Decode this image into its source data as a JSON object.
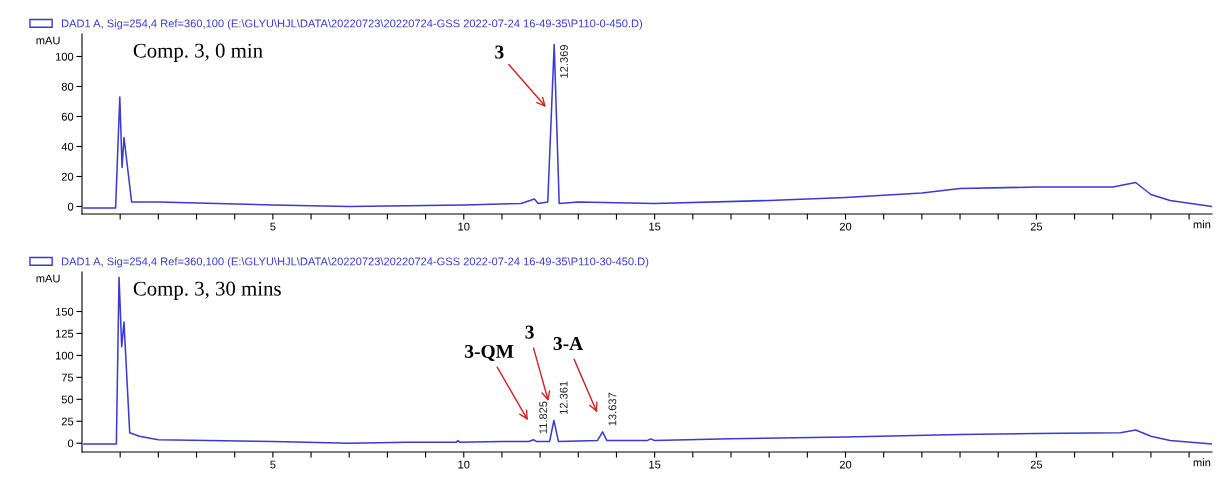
{
  "chart_data": [
    {
      "type": "line",
      "xlabel": "min",
      "ylabel": "mAU",
      "xlim": [
        0,
        29.6
      ],
      "ylim": [
        -5,
        115
      ],
      "xticks": [
        {
          "value": 1,
          "label": null
        },
        {
          "value": 2,
          "label": null
        },
        {
          "value": 3,
          "label": null
        },
        {
          "value": 4,
          "label": null
        },
        5,
        {
          "value": 6,
          "label": null
        },
        {
          "value": 7,
          "label": null
        },
        {
          "value": 8,
          "label": null
        },
        {
          "value": 9,
          "label": null
        },
        10,
        {
          "value": 11,
          "label": null
        },
        {
          "value": 12,
          "label": null
        },
        {
          "value": 13,
          "label": null
        },
        {
          "value": 14,
          "label": null
        },
        15,
        {
          "value": 16,
          "label": null
        },
        {
          "value": 17,
          "label": null
        },
        {
          "value": 18,
          "label": null
        },
        {
          "value": 19,
          "label": null
        },
        20,
        {
          "value": 21,
          "label": null
        },
        {
          "value": 22,
          "label": null
        },
        {
          "value": 23,
          "label": null
        },
        {
          "value": 24,
          "label": null
        },
        25,
        {
          "value": 26,
          "label": null
        },
        {
          "value": 27,
          "label": null
        },
        {
          "value": 28,
          "label": null
        },
        {
          "value": 29,
          "label": null
        }
      ],
      "yticks": [
        0,
        20,
        40,
        60,
        80,
        100
      ],
      "grid": false,
      "legend": "top",
      "series": [
        {
          "name": "DAD1 A, Sig=254,4 Ref=360,100 (E:\\GLYU\\HJL\\DATA\\20220723\\20220724-GSS 2022-07-24 16-49-35\\P110-0-450.D)",
          "color": "#3a3ad0",
          "x": [
            0.05,
            0.88,
            0.99,
            1.05,
            1.1,
            1.3,
            2,
            5,
            7,
            10,
            11.5,
            11.85,
            11.95,
            12.2,
            12.369,
            12.5,
            13,
            15,
            18,
            20,
            22,
            23,
            25,
            27,
            27.6,
            28,
            28.5,
            29.6
          ],
          "values": [
            -1,
            -1,
            73,
            26,
            46,
            3,
            3,
            1,
            0,
            1,
            2,
            5,
            2,
            3,
            108,
            2,
            3,
            2,
            4,
            6,
            9,
            12,
            13,
            13,
            16,
            8,
            4,
            0
          ]
        }
      ],
      "annotations": [
        "Comp. 3, 0 min",
        "3",
        {
          "text": "12.369",
          "x": 12.369,
          "y": 108
        }
      ]
    },
    {
      "type": "line",
      "xlabel": "min",
      "ylabel": "mAU",
      "xlim": [
        0,
        29.6
      ],
      "ylim": [
        -10,
        195
      ],
      "xticks": [
        {
          "value": 1,
          "label": null
        },
        {
          "value": 2,
          "label": null
        },
        {
          "value": 3,
          "label": null
        },
        {
          "value": 4,
          "label": null
        },
        5,
        {
          "value": 6,
          "label": null
        },
        {
          "value": 7,
          "label": null
        },
        {
          "value": 8,
          "label": null
        },
        {
          "value": 9,
          "label": null
        },
        10,
        {
          "value": 11,
          "label": null
        },
        {
          "value": 12,
          "label": null
        },
        {
          "value": 13,
          "label": null
        },
        {
          "value": 14,
          "label": null
        },
        15,
        {
          "value": 16,
          "label": null
        },
        {
          "value": 17,
          "label": null
        },
        {
          "value": 18,
          "label": null
        },
        {
          "value": 19,
          "label": null
        },
        20,
        {
          "value": 21,
          "label": null
        },
        {
          "value": 22,
          "label": null
        },
        {
          "value": 23,
          "label": null
        },
        {
          "value": 24,
          "label": null
        },
        25,
        {
          "value": 26,
          "label": null
        },
        {
          "value": 27,
          "label": null
        },
        {
          "value": 28,
          "label": null
        },
        {
          "value": 29,
          "label": null
        }
      ],
      "yticks": [
        0,
        25,
        50,
        75,
        100,
        125,
        150
      ],
      "grid": false,
      "legend": "top",
      "series": [
        {
          "name": "DAD1 A, Sig=254,4 Ref=360,100 (E:\\GLYU\\HJL\\DATA\\20220723\\20220724-GSS 2022-07-24 16-49-35\\P110-30-450.D)",
          "color": "#3a3ad0",
          "x": [
            0.05,
            0.9,
            0.97,
            1.04,
            1.1,
            1.25,
            1.5,
            2,
            5,
            7,
            8.5,
            9.8,
            9.85,
            9.9,
            11,
            11.7,
            11.825,
            11.9,
            12.25,
            12.361,
            12.48,
            13.5,
            13.637,
            13.75,
            14.8,
            14.9,
            15,
            17,
            20,
            23,
            25,
            27.2,
            27.6,
            28,
            28.5,
            29.6
          ],
          "values": [
            -1,
            -1,
            189,
            110,
            138,
            12,
            8,
            4,
            2,
            0,
            1,
            1,
            3,
            1,
            2,
            2,
            4,
            2,
            2,
            26,
            2,
            3,
            13,
            3,
            3,
            5,
            3,
            5,
            7,
            10,
            11,
            12,
            15,
            8,
            3,
            -1
          ]
        }
      ],
      "annotations": [
        "Comp. 3, 30 mins",
        "3-QM",
        "3",
        "3-A",
        {
          "text": "11.825",
          "x": 11.825,
          "y": 4
        },
        {
          "text": "12.361",
          "x": 12.361,
          "y": 26
        },
        {
          "text": "13.637",
          "x": 13.637,
          "y": 13
        }
      ]
    }
  ]
}
